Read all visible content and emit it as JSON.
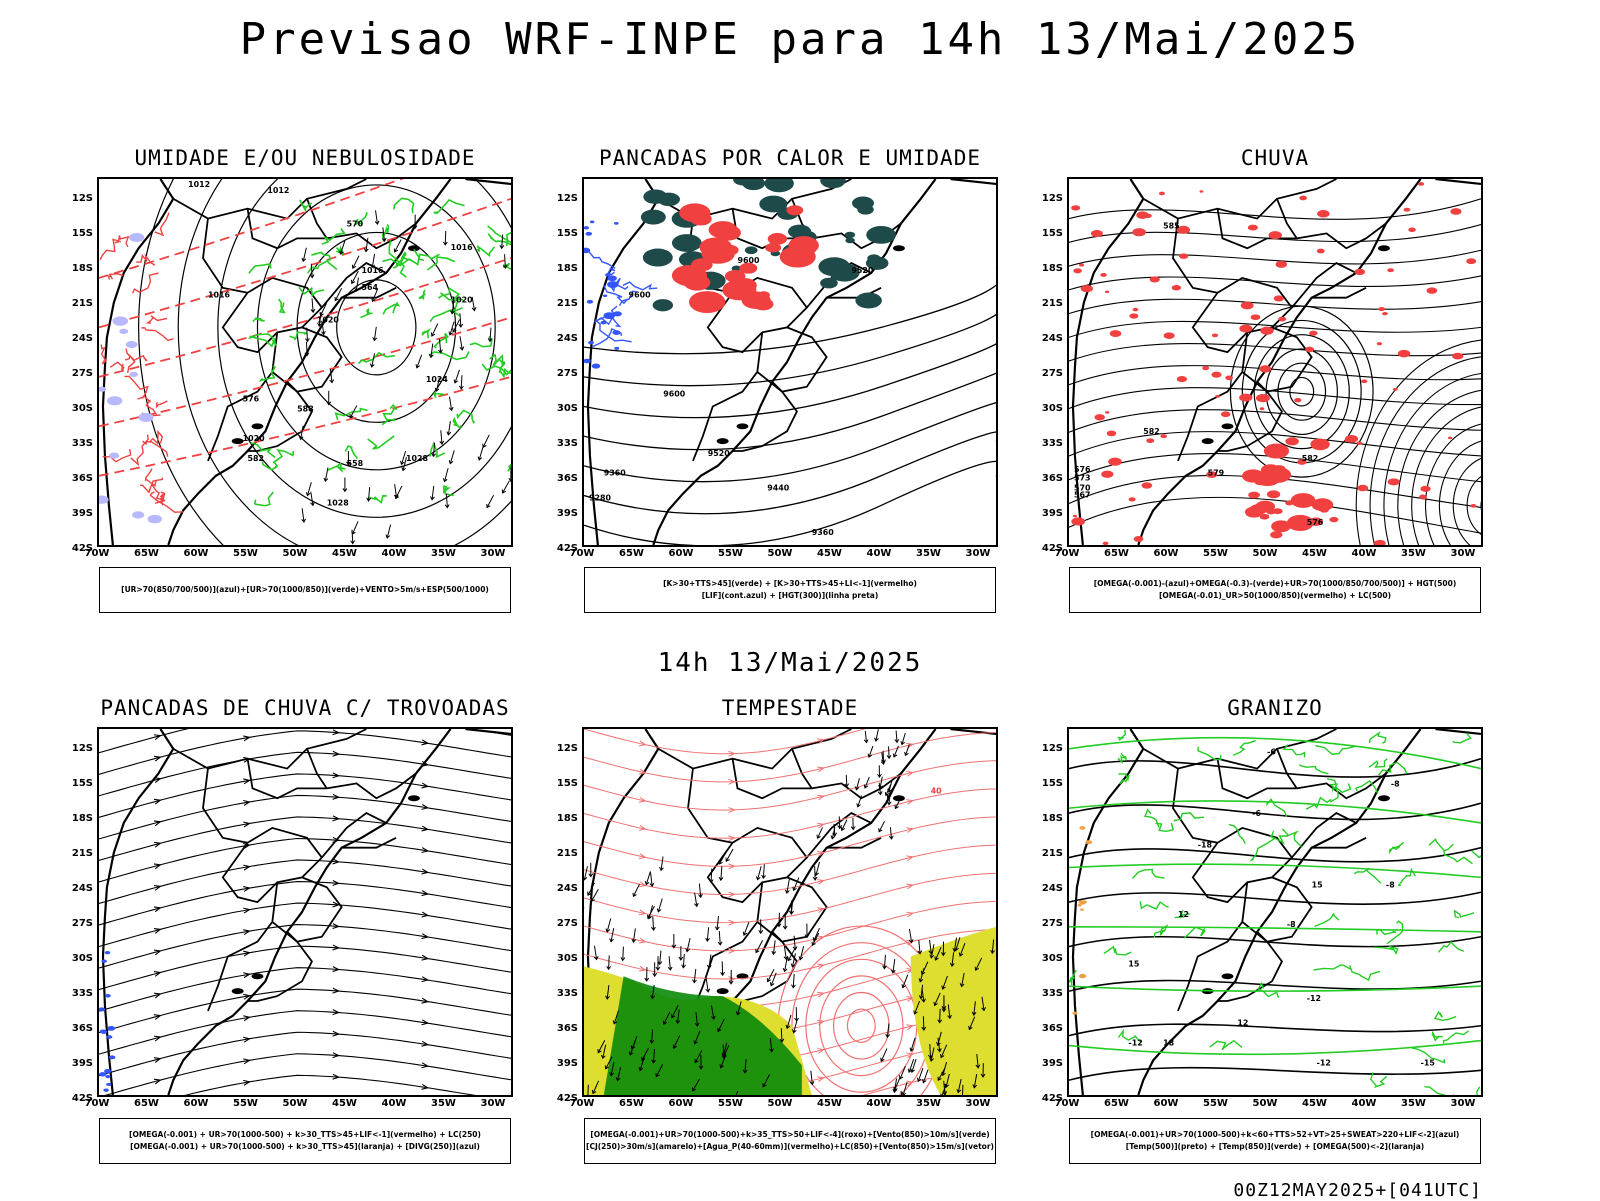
{
  "header": {
    "title": "Previsao WRF-INPE  para 14h 13/Mai/2025",
    "mid_time": "14h 13/Mai/2025",
    "run_info": "00Z12MAY2025+[041UTC]"
  },
  "axes": {
    "lat_labels": [
      "12S",
      "15S",
      "18S",
      "21S",
      "24S",
      "27S",
      "30S",
      "33S",
      "36S",
      "39S",
      "42S"
    ],
    "lon_labels": [
      "70W",
      "65W",
      "60W",
      "55W",
      "50W",
      "45W",
      "40W",
      "35W",
      "30W"
    ]
  },
  "colors": {
    "red": "#f04040",
    "green": "#22cc22",
    "dark_green": "#0a8a0a",
    "blue": "#3355ff",
    "teal": "#1f4a4a",
    "yellow": "#dede30",
    "light_red": "#f07070"
  },
  "panels": [
    {
      "title": "UMIDADE E/OU NEBULOSIDADE",
      "legend": [
        "[UR>70(850/700/500)](azul)+[UR>70(1000/850)](verde)+VENTO>5m/s+ESP(500/1000)"
      ],
      "labels": [
        "1012",
        "1012",
        "1016",
        "1016",
        "1020",
        "1016",
        "1020",
        "1024",
        "1020",
        "1028",
        "1028",
        "570",
        "564",
        "558",
        "576",
        "582",
        "588"
      ]
    },
    {
      "title": "PANCADAS POR CALOR E UMIDADE",
      "legend": [
        "[K>30+TTS>45](verde) + [K>30+TTS>45+LI<-1](vermelho)",
        "[LIF](cont.azul) + [HGT(300)](linha preta)"
      ],
      "labels": [
        "9600",
        "9600",
        "9600",
        "9520",
        "9520",
        "9440",
        "9360",
        "9360",
        "9280"
      ]
    },
    {
      "title": "CHUVA",
      "legend": [
        "[OMEGA(-0.001)-(azul)+OMEGA(-0.3)-(verde)+UR>70(1000/850/700/500)] + HGT(500)",
        "[OMEGA(-0.01)_UR>50(1000/850)(vermelho) + LC(500)"
      ],
      "labels": [
        "585",
        "582",
        "582",
        "579",
        "576",
        "573",
        "570",
        "567",
        "576"
      ]
    },
    {
      "title": "PANCADAS DE CHUVA C/ TROVOADAS",
      "legend": [
        "[OMEGA(-0.001) + UR>70(1000-500) + k>30_TTS>45+LIF<-1](vermelho) + LC(250)",
        "[OMEGA(-0.001) + UR>70(1000-500) + k>30_TTS>45](laranja) + [DIVG(250)](azul)"
      ],
      "labels": []
    },
    {
      "title": "TEMPESTADE",
      "legend": [
        "[OMEGA(-0.001)+UR>70(1000-500)+k>35_TTS>50+LIF<-4](roxo)+[Vento(850)>10m/s](verde)",
        "[CJ(250)>30m/s](amarelo)+[Agua_P(40-60mm)](vermelho)+LC(850)+[Vento(850)>15m/s](vetor)"
      ],
      "labels": [
        "40"
      ]
    },
    {
      "title": "GRANIZO",
      "legend": [
        "[OMEGA(-0.001)+UR>70(1000-500)+k<60+TTS>52+VT>25+SWEAT>220+LIF<-2](azul)",
        "[Temp(500)](preto) + [Temp(850)](verde) + [OMEGA(500)<-2](laranja)"
      ],
      "labels": [
        "-6",
        "-8",
        "-6",
        "-8",
        "-8",
        "-12",
        "-12",
        "-12",
        "-15",
        "-18",
        "12",
        "15",
        "18",
        "15",
        "12"
      ]
    }
  ]
}
